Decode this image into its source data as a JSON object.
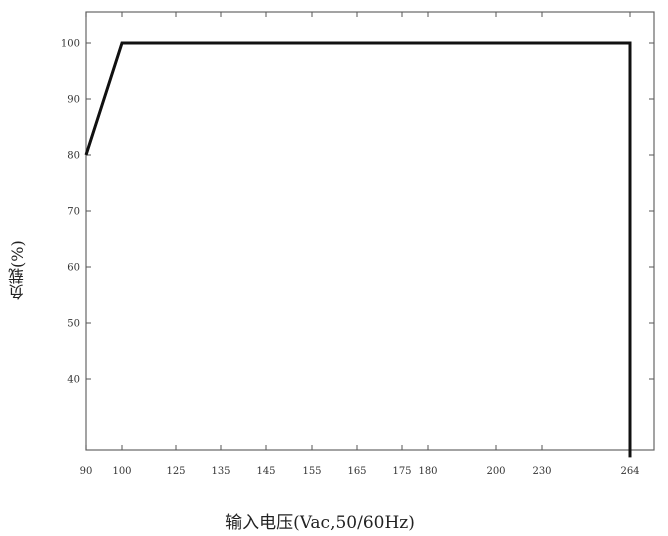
{
  "chart_data": {
    "type": "line",
    "title": "",
    "xlabel": "输入电压(Vac,50/60Hz)",
    "ylabel": "负载(%)",
    "x_tick_labels": [
      "90",
      "100",
      "125",
      "135",
      "145",
      "155",
      "165",
      "175",
      "180",
      "200",
      "230",
      "264"
    ],
    "y_tick_labels": [
      "40",
      "50",
      "60",
      "70",
      "80",
      "90",
      "100"
    ],
    "series": [
      {
        "x": [
          90,
          100,
          264,
          264
        ],
        "y": [
          80,
          100,
          100,
          26
        ],
        "color": "#111111"
      }
    ],
    "ylim": [
      26,
      106
    ],
    "grid": false,
    "legend": "none"
  }
}
